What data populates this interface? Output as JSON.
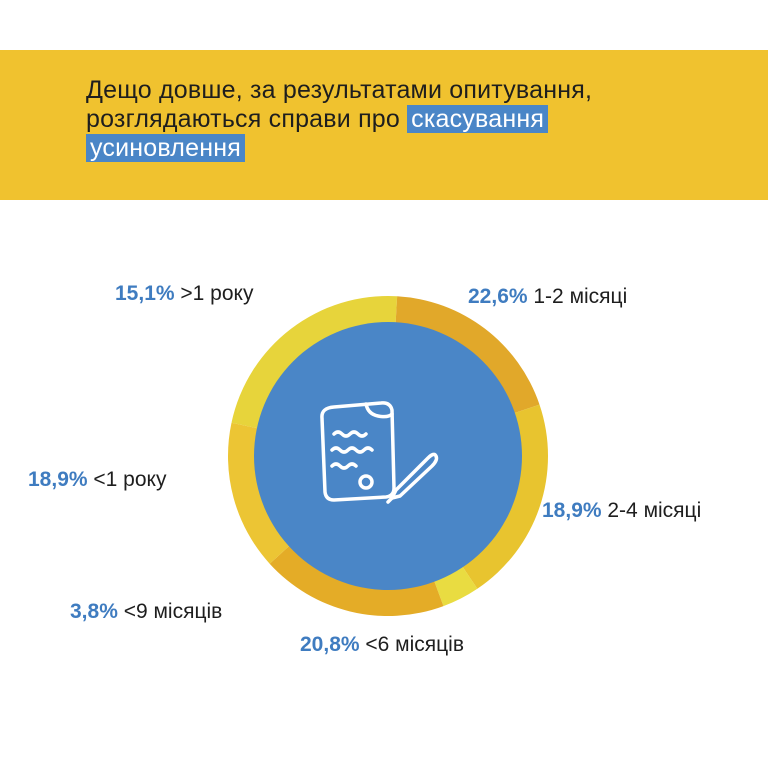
{
  "header": {
    "title_part1": "Дещо довше, за результатами опитування, розглядаються справи про ",
    "title_highlight_1": "скасування",
    "title_highlight_2": "усиновлення"
  },
  "colors": {
    "banner": "#f0c22f",
    "highlight": "#4a86c7",
    "center_circle": "#4a86c7",
    "percent_text": "#3f7cc0",
    "icon_stroke": "#ffffff"
  },
  "center_icon": "document-with-pen-icon",
  "chart_data": {
    "type": "pie",
    "style": "donut",
    "units": "%",
    "slices": [
      {
        "label": "1-2 місяці",
        "value": 22.6,
        "display": "22,6%",
        "color": "#e7d43b"
      },
      {
        "label": "2-4 місяці",
        "value": 18.9,
        "display": "18,9%",
        "color": "#e1a82a"
      },
      {
        "label": "<6 місяців",
        "value": 20.8,
        "display": "20,8%",
        "color": "#e8c42f"
      },
      {
        "label": "<9 місяців",
        "value": 3.8,
        "display": "3,8%",
        "color": "#e9dc41"
      },
      {
        "label": "<1 року",
        "value": 18.9,
        "display": "18,9%",
        "color": "#e4ac27"
      },
      {
        "label": ">1 року",
        "value": 15.1,
        "display": "15,1%",
        "color": "#ecc534"
      }
    ]
  }
}
